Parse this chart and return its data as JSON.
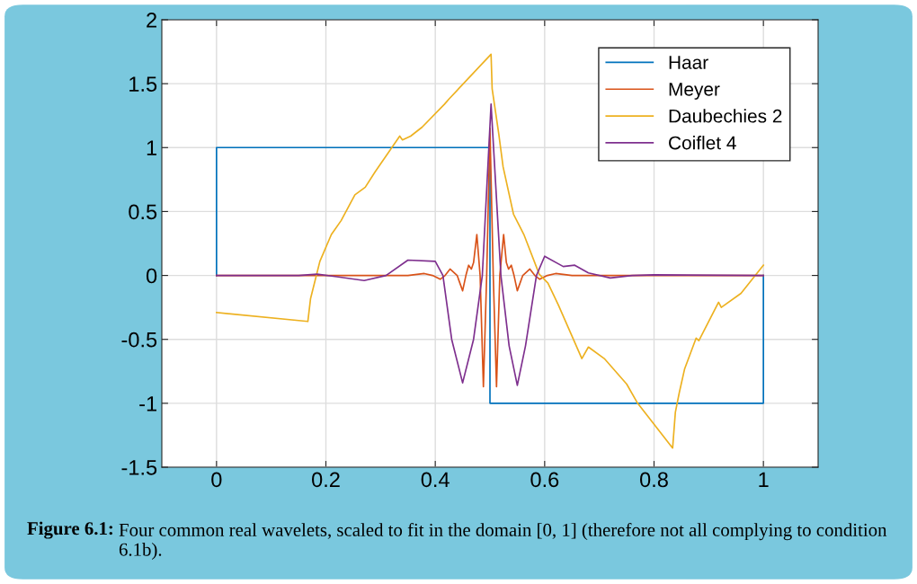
{
  "chart_data": {
    "type": "line",
    "series": [
      {
        "name": "Haar",
        "color": "#0072bd",
        "x": [
          0,
          0,
          0.5,
          0.5,
          1,
          1
        ],
        "values": [
          0,
          1,
          1,
          -1,
          -1,
          0
        ]
      },
      {
        "name": "Meyer",
        "color": "#d95319",
        "x": [
          0,
          0.35,
          0.38,
          0.395,
          0.409,
          0.418,
          0.427,
          0.44,
          0.45,
          0.456,
          0.461,
          0.466,
          0.47,
          0.476,
          0.482,
          0.488,
          0.494,
          0.5,
          0.506,
          0.512,
          0.518,
          0.525,
          0.53,
          0.534,
          0.539,
          0.544,
          0.55,
          0.56,
          0.573,
          0.582,
          0.591,
          0.605,
          0.62,
          0.65,
          1
        ],
        "values": [
          0,
          0,
          0.015,
          0,
          -0.03,
          0,
          0.05,
          0,
          -0.12,
          0,
          0.08,
          0.05,
          0.1,
          0.32,
          0,
          -0.87,
          0,
          1.15,
          0,
          -0.87,
          0,
          0.32,
          0.1,
          0.05,
          0.08,
          0,
          -0.12,
          0,
          0.05,
          0,
          -0.03,
          0,
          0.015,
          0,
          0
        ]
      },
      {
        "name": "Daubechies 2",
        "color": "#edb120",
        "x": [
          0,
          0.167,
          0.172,
          0.189,
          0.21,
          0.228,
          0.253,
          0.272,
          0.29,
          0.335,
          0.34,
          0.355,
          0.376,
          0.417,
          0.425,
          0.502,
          0.504,
          0.516,
          0.524,
          0.543,
          0.562,
          0.59,
          0.606,
          0.625,
          0.668,
          0.68,
          0.709,
          0.75,
          0.77,
          0.834,
          0.839,
          0.846,
          0.856,
          0.877,
          0.882,
          0.918,
          0.923,
          0.959,
          1
        ],
        "values": [
          -0.29,
          -0.36,
          -0.18,
          0.11,
          0.32,
          0.43,
          0.63,
          0.69,
          0.81,
          1.09,
          1.06,
          1.09,
          1.16,
          1.34,
          1.38,
          1.73,
          1.46,
          1.11,
          0.85,
          0.48,
          0.32,
          0.01,
          -0.06,
          -0.23,
          -0.65,
          -0.56,
          -0.65,
          -0.85,
          -1.0,
          -1.35,
          -1.07,
          -0.92,
          -0.73,
          -0.49,
          -0.51,
          -0.21,
          -0.25,
          -0.14,
          0.08
        ]
      },
      {
        "name": "Coiflet 4",
        "color": "#7e2f8e",
        "x": [
          0,
          0.15,
          0.184,
          0.22,
          0.27,
          0.31,
          0.35,
          0.4,
          0.414,
          0.43,
          0.45,
          0.47,
          0.486,
          0.502,
          0.52,
          0.535,
          0.55,
          0.565,
          0.585,
          0.6,
          0.634,
          0.655,
          0.68,
          0.72,
          0.76,
          0.8,
          1
        ],
        "values": [
          0,
          0,
          0.01,
          -0.01,
          -0.04,
          0,
          0.12,
          0.11,
          0,
          -0.5,
          -0.84,
          -0.5,
          0,
          1.34,
          0,
          -0.55,
          -0.86,
          -0.55,
          0,
          0.15,
          0.07,
          0.08,
          0.02,
          -0.02,
          0,
          0.005,
          0
        ]
      }
    ],
    "xlim": [
      -0.1,
      1.1
    ],
    "xticks": [
      0,
      0.2,
      0.4,
      0.6,
      0.8,
      1
    ],
    "ylim": [
      -1.5,
      2
    ],
    "yticks": [
      -1.5,
      -1,
      -0.5,
      0,
      0.5,
      1,
      1.5,
      2
    ],
    "grid": true,
    "legend": "top right",
    "marker": "none",
    "line_style": "solid",
    "annotations": [
      "Figure 6.1:",
      "Four common real wavelets, scaled to fit in the domain [0, 1] (therefore not all complying to condition 6.1b)."
    ]
  }
}
